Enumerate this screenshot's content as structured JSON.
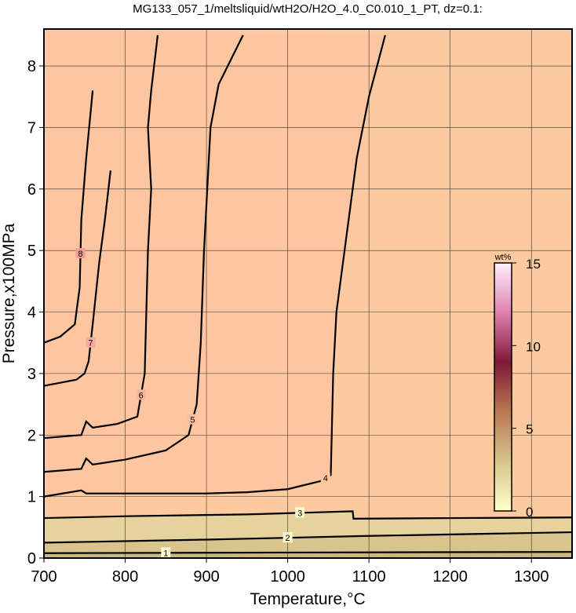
{
  "chart_data": {
    "type": "contour",
    "title": "MG133_057_1/meltsliquid/wtH2O/H2O_4.0_C0.010_1_PT, dz=0.1:",
    "x_label": "Temperature,°C",
    "y_label": "Pressure,x100MPa",
    "xlim": [
      700,
      1350
    ],
    "ylim": [
      0,
      8.6
    ],
    "xticks": [
      700,
      800,
      900,
      1000,
      1100,
      1200,
      1300
    ],
    "yticks": [
      0,
      1,
      2,
      3,
      4,
      5,
      6,
      7,
      8
    ],
    "grid": true,
    "background": "#fdcaa0",
    "contours": [
      {
        "level": 8,
        "side": "upper",
        "fill": "#f49c9a",
        "x": [
          760,
          752,
          746,
          744,
          738,
          720,
          700
        ],
        "y": [
          7.6,
          6.5,
          5.5,
          4.4,
          3.8,
          3.6,
          3.5
        ]
      },
      {
        "level": 7,
        "side": "upper",
        "fill": "#f8aaa0",
        "x": [
          782,
          775,
          768,
          760,
          755,
          750,
          740,
          700
        ],
        "y": [
          6.3,
          5.5,
          4.8,
          3.8,
          3.2,
          3.0,
          2.9,
          2.8
        ]
      },
      {
        "level": 6,
        "side": "upper",
        "fill": "#fbb5a0",
        "x": [
          840,
          832,
          828,
          832,
          828,
          824,
          815,
          790,
          760,
          752,
          746,
          700
        ],
        "y": [
          8.5,
          7.6,
          7.0,
          6.0,
          5.0,
          3.0,
          2.3,
          2.18,
          2.12,
          2.22,
          2.0,
          1.95
        ]
      },
      {
        "level": 5,
        "side": "upper",
        "fill": "#fcbea0",
        "x": [
          945,
          915,
          905,
          903,
          897,
          893,
          888,
          878,
          850,
          800,
          760,
          752,
          746,
          700
        ],
        "y": [
          8.5,
          7.7,
          7.0,
          6.5,
          5.0,
          3.5,
          2.5,
          2.0,
          1.75,
          1.6,
          1.52,
          1.62,
          1.45,
          1.4
        ]
      },
      {
        "level": 4,
        "side": "upper",
        "fill": "#fdc6a0",
        "x": [
          1120,
          1100,
          1085,
          1070,
          1060,
          1056,
          1053,
          1040,
          1000,
          950,
          900,
          800,
          752,
          746,
          700
        ],
        "y": [
          8.5,
          7.5,
          6.5,
          5.0,
          4.0,
          3.0,
          1.35,
          1.25,
          1.12,
          1.07,
          1.05,
          1.05,
          1.05,
          1.1,
          1.0
        ]
      },
      {
        "level": 3,
        "side": "lower",
        "fill": "#e6d29c",
        "x": [
          700,
          800,
          950,
          1080,
          1081,
          1200,
          1350
        ],
        "y": [
          0.65,
          0.68,
          0.71,
          0.76,
          0.64,
          0.65,
          0.66
        ]
      },
      {
        "level": 2,
        "side": "lower",
        "fill": "#d8c48c",
        "x": [
          700,
          900,
          1100,
          1350
        ],
        "y": [
          0.25,
          0.3,
          0.36,
          0.42
        ]
      },
      {
        "level": 1,
        "side": "lower",
        "fill": "#ccb77e",
        "x": [
          700,
          1000,
          1350
        ],
        "y": [
          0.08,
          0.09,
          0.1
        ]
      }
    ],
    "colorbar": {
      "label": "wt%",
      "lim": [
        0,
        15
      ],
      "ticks": [
        0,
        5,
        10,
        15
      ],
      "colors": [
        "#ffffc8",
        "#d8c48c",
        "#b87850",
        "#801838",
        "#e080b0",
        "#fff0ff"
      ]
    }
  }
}
